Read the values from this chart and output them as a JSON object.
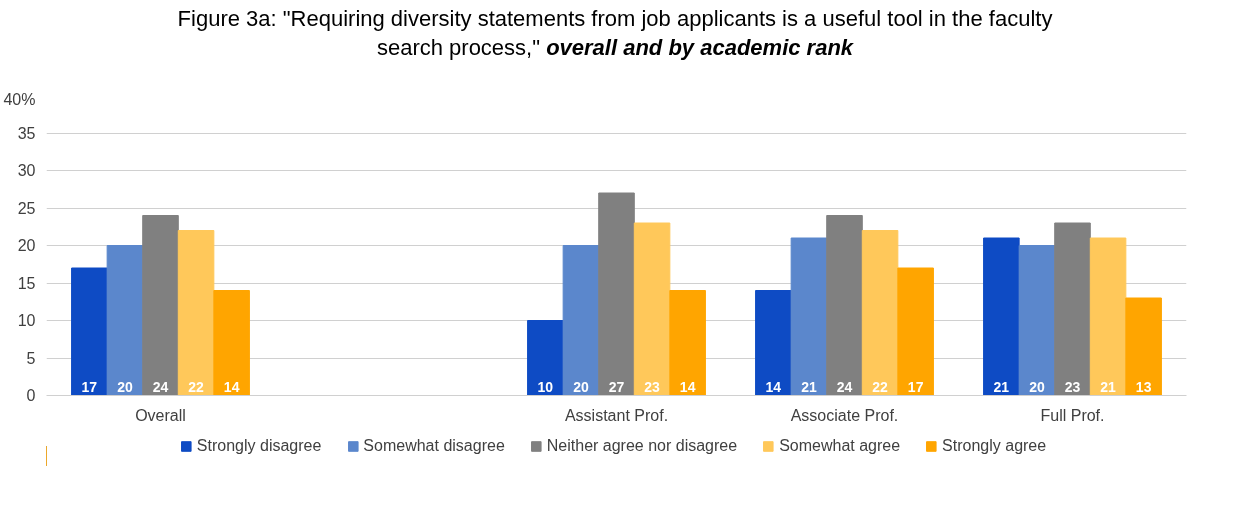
{
  "chart_data": {
    "type": "bar",
    "title": "Figure 3a: \"Requiring diversity statements from job applicants is a useful tool in the faculty search process,\"",
    "subtitle": "overall and by academic rank",
    "categories": [
      "Overall",
      null,
      "Assistant Prof.",
      "Associate Prof.",
      "Full Prof."
    ],
    "series": [
      {
        "name": "Strongly disagree",
        "color": "#0e4bc4",
        "values": [
          17,
          null,
          10,
          14,
          21
        ]
      },
      {
        "name": "Somewhat disagree",
        "color": "#5b87cc",
        "values": [
          20,
          null,
          20,
          21,
          20
        ]
      },
      {
        "name": "Neither agree nor disagree",
        "color": "#808080",
        "values": [
          24,
          null,
          27,
          24,
          23
        ]
      },
      {
        "name": "Somewhat agree",
        "color": "#ffc85a",
        "values": [
          22,
          null,
          23,
          22,
          21
        ]
      },
      {
        "name": "Strongly agree",
        "color": "#ffa500",
        "values": [
          14,
          null,
          14,
          17,
          13
        ]
      }
    ],
    "ylim": [
      0,
      40
    ],
    "yticks": [
      0,
      5,
      10,
      15,
      20,
      25,
      30,
      35,
      {
        "value": 40,
        "label": "40%"
      }
    ],
    "grid": "y",
    "legend": "bottom",
    "data_labels": true
  }
}
